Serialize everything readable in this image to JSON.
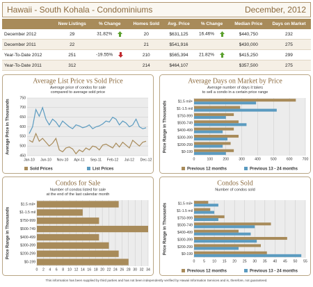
{
  "header": {
    "title": "Hawaii - South Kohala - Condominiums",
    "date": "December, 2012"
  },
  "table": {
    "columns": [
      "New Listings",
      "% Change",
      "Homes Sold",
      "Avg. Price",
      "% Change",
      "Median Price",
      "Days on Market"
    ],
    "rows": [
      {
        "label": "December 2012",
        "new_listings": "29",
        "listings_change": "31.82%",
        "homes_sold": "20",
        "avg_price": "$631,125",
        "price_change": "16.46%",
        "median_price": "$440,750",
        "days_on_market": "232"
      },
      {
        "label": "December 2011",
        "new_listings": "22",
        "homes_sold": "21",
        "avg_price": "$541,916",
        "median_price": "$430,000",
        "days_on_market": "275"
      },
      {
        "label": "Year-To-Date 2012",
        "new_listings": "251",
        "listings_change": "-19.55%",
        "homes_sold": "210",
        "avg_price": "$565,394",
        "price_change": "21.82%",
        "median_price": "$415,250",
        "days_on_market": "299"
      },
      {
        "label": "Year-To-Date 2011",
        "new_listings": "312",
        "homes_sold": "214",
        "avg_price": "$464,107",
        "median_price": "$357,500",
        "days_on_market": "275"
      }
    ]
  },
  "chart_data": [
    {
      "type": "line",
      "title": "Average List Price vs Sold Price",
      "subtitle": [
        "Average price of condos for sale",
        "compared to average sold price"
      ],
      "y_label": "Average Price in Thousands",
      "categories": [
        "Jan-10",
        null,
        null,
        null,
        null,
        "Jun-10",
        null,
        null,
        null,
        null,
        "Nov-10",
        null,
        null,
        null,
        null,
        "Apr-11",
        null,
        null,
        null,
        null,
        "Sep-11",
        null,
        null,
        null,
        null,
        "Feb-12",
        null,
        null,
        null,
        null,
        "Jul-12",
        null,
        null,
        null,
        null,
        "Dec-12"
      ],
      "series": [
        {
          "name": "Sold Prices",
          "color": "#a88b5a",
          "values": [
            530,
            520,
            565,
            525,
            540,
            520,
            500,
            515,
            540,
            480,
            470,
            490,
            495,
            485,
            460,
            480,
            470,
            490,
            480,
            500,
            495,
            480,
            505,
            510,
            500,
            490,
            515,
            495,
            520,
            505,
            490,
            530,
            515,
            500,
            520,
            525
          ]
        },
        {
          "name": "List Prices",
          "color": "#5b9bc0",
          "values": [
            565,
            600,
            690,
            655,
            700,
            640,
            610,
            640,
            625,
            600,
            630,
            615,
            600,
            590,
            610,
            605,
            595,
            600,
            610,
            590,
            600,
            605,
            615,
            630,
            625,
            650,
            640,
            610,
            630,
            620,
            600,
            610,
            640,
            600,
            590,
            595
          ]
        }
      ],
      "ylim": [
        450,
        750
      ],
      "yticks": [
        450,
        500,
        550,
        600,
        650,
        700,
        750
      ],
      "grid": true
    },
    {
      "type": "barh",
      "title": "Average Days on Market by Price",
      "subtitle": [
        "Average number of days it takes",
        "to sell a condo in a certain price range"
      ],
      "y_label": "Price Range in Thousands",
      "categories": [
        "$1.5 mil+",
        "$1-1.5 mil",
        "$750-999",
        "$500-749",
        "$400-499",
        "$300-399",
        "$200-299",
        "$0-199"
      ],
      "series": [
        {
          "name": "Previous 12 months",
          "color": "#a88b5a",
          "values": [
            640,
            290,
            250,
            280,
            250,
            280,
            230,
            250
          ]
        },
        {
          "name": "Previous 13 - 24 months",
          "color": "#5b9bc0",
          "values": [
            390,
            520,
            200,
            330,
            180,
            210,
            180,
            200
          ]
        }
      ],
      "xlim": [
        0,
        700
      ],
      "xticks": [
        0,
        100,
        200,
        300,
        400,
        500,
        600,
        700
      ],
      "grid": true
    },
    {
      "type": "barh",
      "title": "Condos for Sale",
      "subtitle": [
        "Number of condos listed for sale",
        "at the end of the last calendar month"
      ],
      "y_label": "Price Range in Thousands",
      "categories": [
        "$1.5 mil+",
        "$1-1.5 mil",
        "$750-999",
        "$500-749",
        "$400-499",
        "$300-399",
        "$200-299",
        "$0-199"
      ],
      "series": [
        {
          "color": "#a88b5a",
          "values": [
            25,
            14,
            19,
            34,
            19,
            22,
            25,
            28
          ]
        }
      ],
      "xlim": [
        0,
        34
      ],
      "xticks": [
        0,
        2,
        4,
        6,
        8,
        10,
        12,
        14,
        16,
        18,
        20,
        22,
        24,
        26,
        28,
        30,
        32,
        34
      ],
      "grid": true
    },
    {
      "type": "barh",
      "title": "Condos Sold",
      "subtitle": [
        "Number of condos sold"
      ],
      "y_label": "Price Range in Thousands",
      "categories": [
        "$1.5 mil+",
        "$1-1.5 mil",
        "$750-999",
        "$500-749",
        "$400-499",
        "$300-399",
        "$200-299",
        "$0-199"
      ],
      "series": [
        {
          "name": "Previous 12 months",
          "color": "#a88b5a",
          "values": [
            7,
            8,
            15,
            38,
            22,
            46,
            33,
            36
          ]
        },
        {
          "name": "Previous 13 - 24 months",
          "color": "#5b9bc0",
          "values": [
            12,
            10,
            12,
            30,
            28,
            31,
            22,
            53
          ]
        }
      ],
      "xlim": [
        0,
        55
      ],
      "xticks": [
        0,
        5,
        10,
        15,
        20,
        25,
        30,
        35,
        40,
        45,
        50,
        55
      ],
      "grid": true
    }
  ],
  "footer": "This information has been supplied by third parties and has not been independently verified by Hawaii Information Services and is, therefore, not guaranteed."
}
